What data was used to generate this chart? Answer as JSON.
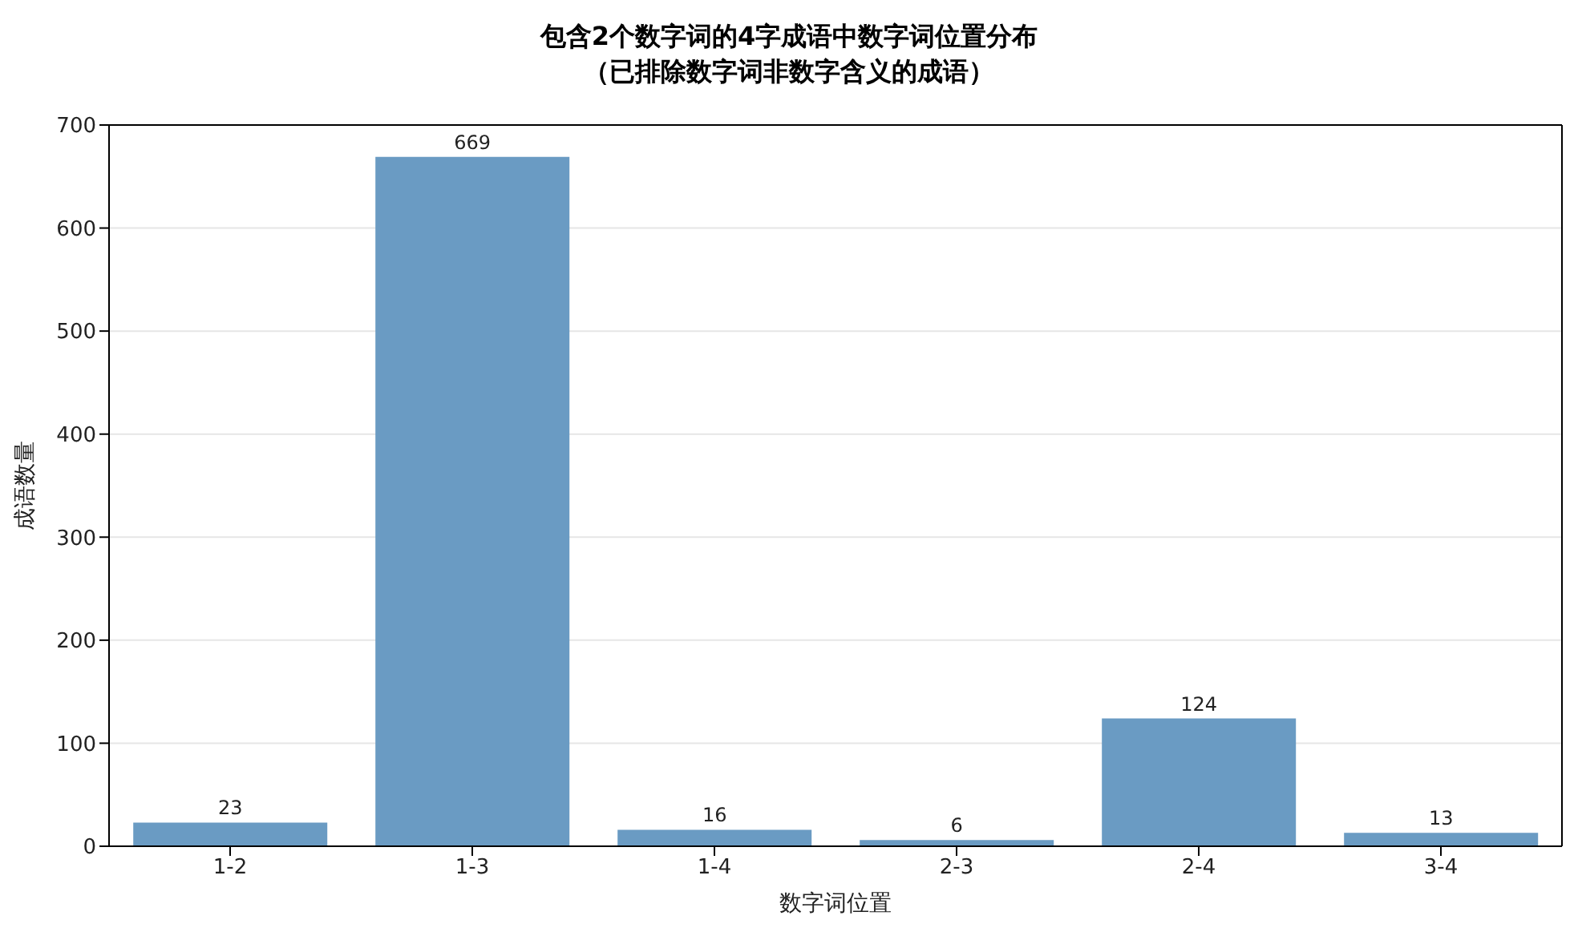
{
  "chart_data": {
    "type": "bar",
    "title": "包含2个数字词的4字成语中数字词位置分布",
    "subtitle": "（已排除数字词非数字含义的成语）",
    "xlabel": "数字词位置",
    "ylabel": "成语数量",
    "categories": [
      "1-2",
      "1-3",
      "1-4",
      "2-3",
      "2-4",
      "3-4"
    ],
    "values": [
      23,
      669,
      16,
      6,
      124,
      13
    ],
    "color": "#6a9bc3",
    "ylim": [
      0,
      700
    ],
    "yticks": [
      0,
      100,
      200,
      300,
      400,
      500,
      600,
      700
    ],
    "grid": "y",
    "data_labels": true
  }
}
